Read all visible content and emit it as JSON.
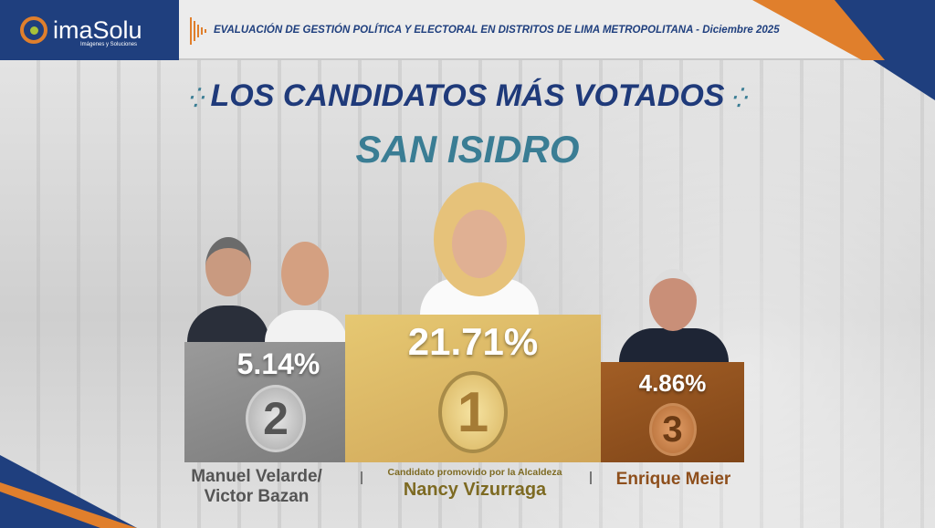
{
  "header": {
    "brand": "imaSolu",
    "brand_tagline": "Imágenes y Soluciones",
    "title": "EVALUACIÓN DE GESTIÓN POLÍTICA Y ELECTORAL EN DISTRITOS DE LIMA METROPOLITANA - Diciembre 2025"
  },
  "main": {
    "title": "LOS CANDIDATOS MÁS VOTADOS",
    "district": "SAN ISIDRO"
  },
  "podium": [
    {
      "rank": "2",
      "percent": "5.14%",
      "name_line1": "Manuel Velarde/",
      "name_line2": "Victor Bazan",
      "color": "#8a8a8a"
    },
    {
      "rank": "1",
      "percent": "21.71%",
      "note": "Candidato promovido por la Alcaldeza",
      "name_line1": "Nancy Vizurraga",
      "color": "#d9b561"
    },
    {
      "rank": "3",
      "percent": "4.86%",
      "name_line1": "Enrique Meier",
      "color": "#8e4f1c"
    }
  ],
  "colors": {
    "navy": "#1f3a7a",
    "teal": "#3a7d94",
    "orange": "#e07f2c"
  }
}
